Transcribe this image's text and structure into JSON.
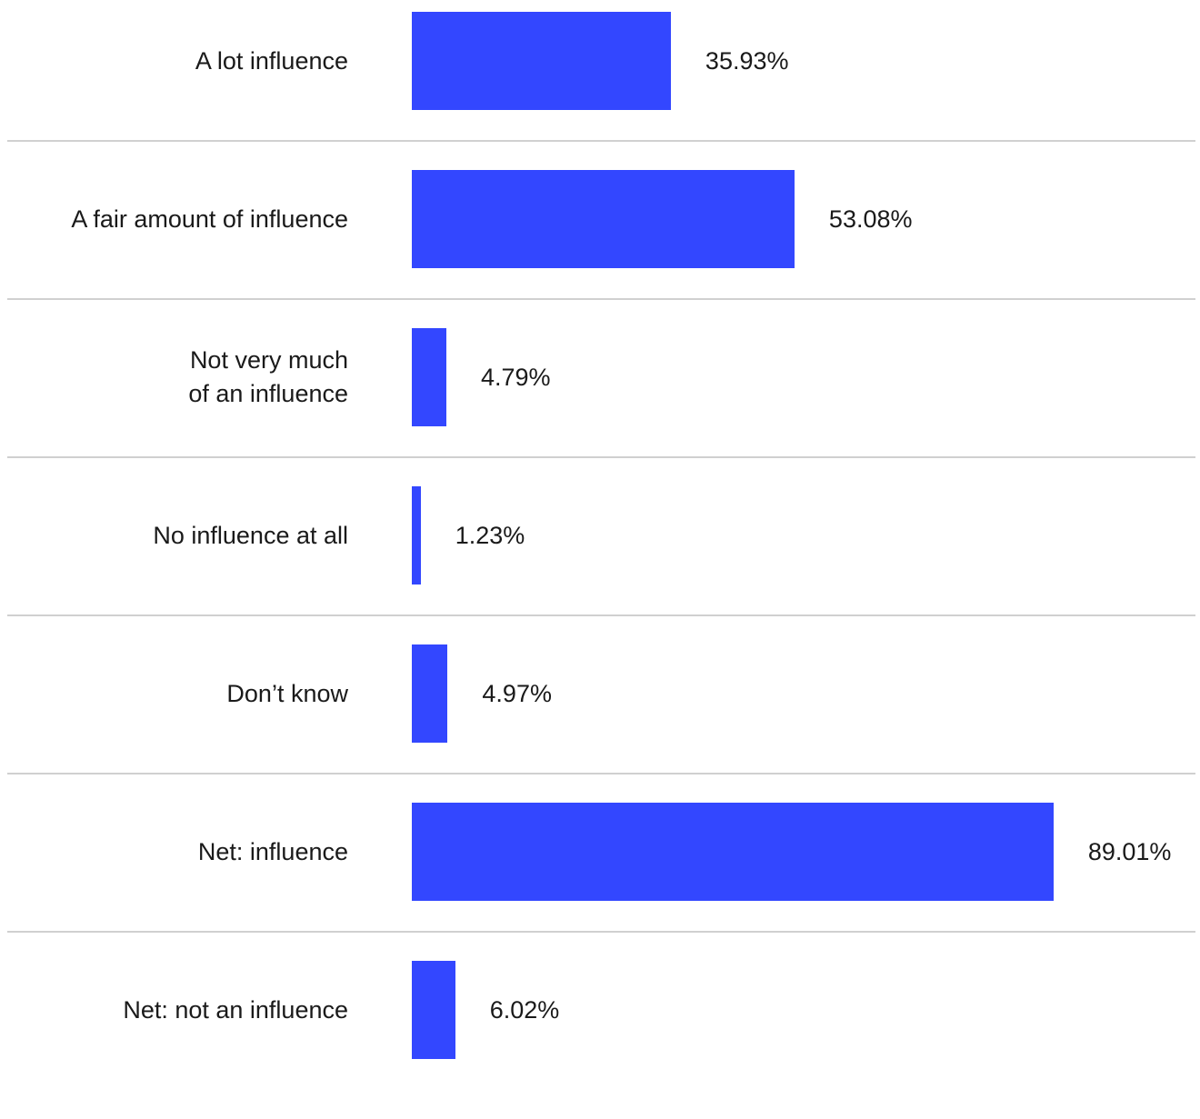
{
  "chart_data": {
    "type": "bar",
    "orientation": "horizontal",
    "categories": [
      "A lot influence",
      "A fair amount of influence",
      "Not very much\nof an influence",
      "No influence at all",
      "Don’t know",
      "Net: influence",
      "Net: not an influence"
    ],
    "values": [
      35.93,
      53.08,
      4.79,
      1.23,
      4.97,
      89.01,
      6.02
    ],
    "value_labels": [
      "35.93%",
      "53.08%",
      "4.79%",
      "1.23%",
      "4.97%",
      "89.01%",
      "6.02%"
    ],
    "xlim": [
      0,
      100
    ],
    "grid": false,
    "bar_color": "#3347ff",
    "divider_color": "#d0d0d0"
  }
}
